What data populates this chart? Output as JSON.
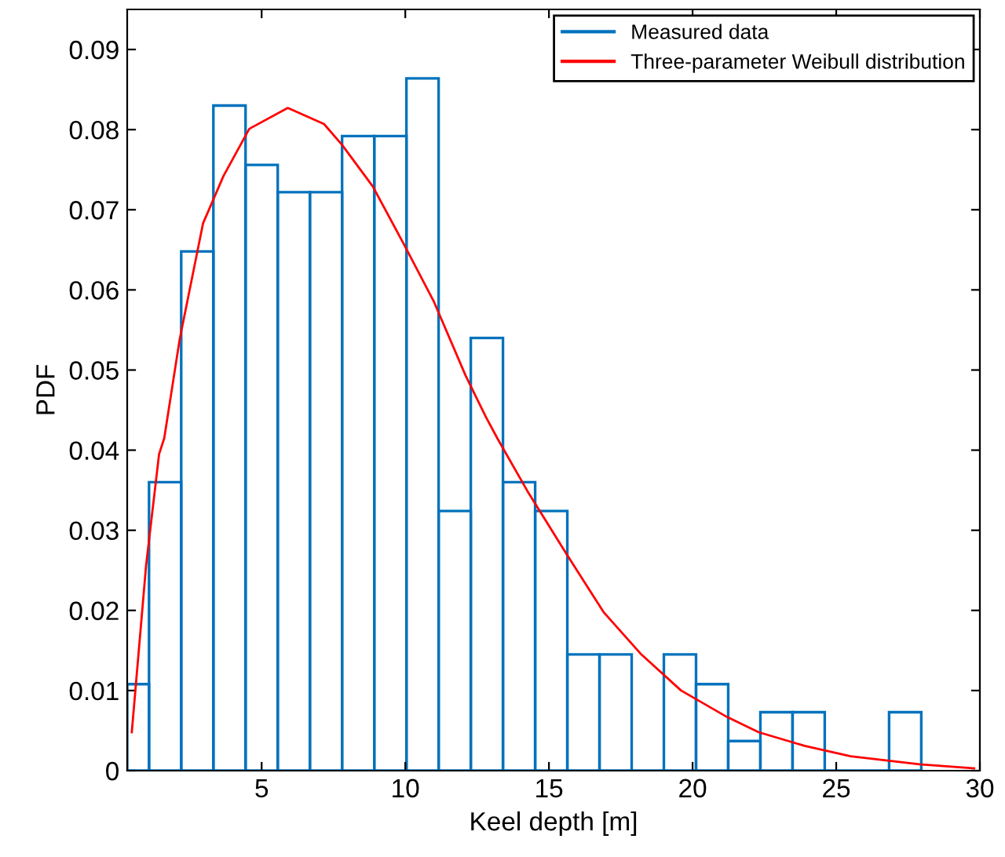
{
  "chart_data": {
    "type": "histogram",
    "xlabel": "Keel depth [m]",
    "ylabel": "PDF",
    "xlim": [
      0.32,
      30
    ],
    "ylim": [
      0,
      0.095
    ],
    "xticks": [
      5,
      10,
      15,
      20,
      25,
      30
    ],
    "yticks": [
      0,
      0.01,
      0.02,
      0.03,
      0.04,
      0.05,
      0.06,
      0.07,
      0.08,
      0.09
    ],
    "grid": false,
    "legend": "top right",
    "series": [
      {
        "name": "Measured data",
        "color": "#0072bd",
        "bins": [
          0.32,
          1.08,
          2.2,
          3.32,
          4.44,
          5.56,
          6.68,
          7.8,
          8.92,
          10.04,
          11.16,
          12.28,
          13.4,
          14.52,
          15.64,
          16.76,
          17.88,
          19.0,
          20.12,
          21.24,
          22.36,
          23.48,
          24.6,
          25.72,
          26.84,
          27.96
        ],
        "values": [
          0.0108,
          0.036,
          0.0648,
          0.083,
          0.0756,
          0.0722,
          0.0722,
          0.0792,
          0.0792,
          0.0864,
          0.0324,
          0.054,
          0.036,
          0.0324,
          0.0145,
          0.0145,
          0,
          0.0145,
          0.0108,
          0.0037,
          0.0073,
          0.0073,
          0,
          0,
          0.0073
        ]
      },
      {
        "name": "Three-parameter Weibull distribution",
        "type": "line",
        "color": "#ff0000",
        "x": [
          0.48,
          0.98,
          1.43,
          1.61,
          2.15,
          2.96,
          3.67,
          4.57,
          5.91,
          7.17,
          7.8,
          8.87,
          9.95,
          11.0,
          12.1,
          12.81,
          13.2,
          14.25,
          15.6,
          16.9,
          18.19,
          19.6,
          21.2,
          22.3,
          23.9,
          25.5,
          27.9,
          29.8
        ],
        "values": [
          0.0048,
          0.0257,
          0.0395,
          0.0415,
          0.0539,
          0.0683,
          0.0742,
          0.0801,
          0.0827,
          0.0807,
          0.0781,
          0.0729,
          0.0657,
          0.0585,
          0.0493,
          0.0441,
          0.0415,
          0.0349,
          0.0271,
          0.0198,
          0.0146,
          0.01,
          0.0067,
          0.0048,
          0.0031,
          0.0018,
          0.0008,
          0.0003
        ]
      }
    ]
  }
}
